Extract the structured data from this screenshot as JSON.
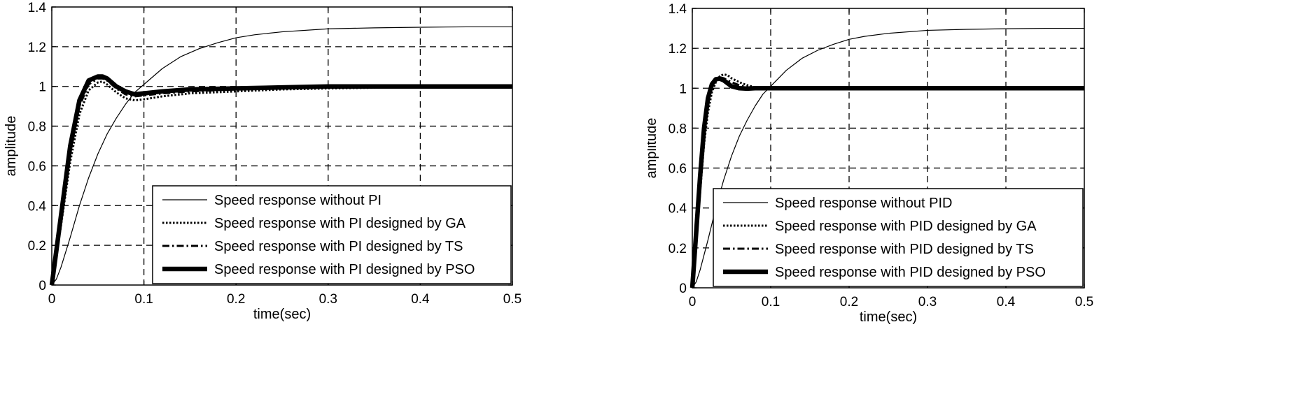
{
  "chart_data": [
    {
      "type": "line",
      "xlabel": "time(sec)",
      "ylabel": "amplitude",
      "xlim": [
        0,
        0.5
      ],
      "ylim": [
        0,
        1.4
      ],
      "xticks": [
        "0",
        "0.1",
        "0.2",
        "0.3",
        "0.4",
        "0.5"
      ],
      "yticks": [
        "0",
        "0.2",
        "0.4",
        "0.6",
        "0.8",
        "1",
        "1.2",
        "1.4"
      ],
      "grid": true,
      "legend_position": "bottom-right",
      "series": [
        {
          "name": "Speed response without PI",
          "style": "solid-thin",
          "x": [
            0,
            0.005,
            0.01,
            0.02,
            0.03,
            0.04,
            0.05,
            0.06,
            0.07,
            0.08,
            0.09,
            0.1,
            0.12,
            0.14,
            0.16,
            0.18,
            0.2,
            0.22,
            0.25,
            0.3,
            0.35,
            0.4,
            0.45,
            0.5
          ],
          "y": [
            0,
            0.03,
            0.09,
            0.24,
            0.4,
            0.54,
            0.66,
            0.76,
            0.84,
            0.91,
            0.97,
            1.01,
            1.09,
            1.15,
            1.19,
            1.22,
            1.245,
            1.26,
            1.275,
            1.29,
            1.295,
            1.298,
            1.3,
            1.3
          ]
        },
        {
          "name": "Speed response with PI designed by GA",
          "style": "dotted",
          "x": [
            0,
            0.01,
            0.02,
            0.03,
            0.04,
            0.05,
            0.055,
            0.06,
            0.07,
            0.08,
            0.09,
            0.1,
            0.12,
            0.15,
            0.2,
            0.25,
            0.3,
            0.4,
            0.5
          ],
          "y": [
            0,
            0.3,
            0.62,
            0.86,
            0.98,
            1.02,
            1.025,
            1.01,
            0.97,
            0.94,
            0.93,
            0.935,
            0.95,
            0.965,
            0.975,
            0.985,
            0.99,
            0.997,
            1.0
          ]
        },
        {
          "name": "Speed response with PI designed by TS",
          "style": "dashdot",
          "x": [
            0,
            0.01,
            0.02,
            0.03,
            0.04,
            0.05,
            0.055,
            0.06,
            0.07,
            0.08,
            0.09,
            0.1,
            0.12,
            0.15,
            0.2,
            0.25,
            0.3,
            0.4,
            0.5
          ],
          "y": [
            0,
            0.32,
            0.66,
            0.9,
            1.01,
            1.04,
            1.04,
            1.03,
            0.99,
            0.96,
            0.95,
            0.955,
            0.965,
            0.975,
            0.985,
            0.99,
            0.995,
            0.998,
            1.0
          ]
        },
        {
          "name": "Speed response with PI designed by PSO",
          "style": "solid-thick",
          "x": [
            0,
            0.01,
            0.02,
            0.03,
            0.04,
            0.05,
            0.055,
            0.06,
            0.07,
            0.08,
            0.09,
            0.1,
            0.12,
            0.15,
            0.2,
            0.25,
            0.3,
            0.4,
            0.5
          ],
          "y": [
            0,
            0.35,
            0.7,
            0.93,
            1.03,
            1.05,
            1.05,
            1.04,
            1.0,
            0.975,
            0.96,
            0.965,
            0.975,
            0.985,
            0.99,
            0.995,
            1.0,
            1.0,
            1.0
          ]
        }
      ]
    },
    {
      "type": "line",
      "xlabel": "time(sec)",
      "ylabel": "amplitude",
      "xlim": [
        0,
        0.5
      ],
      "ylim": [
        0,
        1.4
      ],
      "xticks": [
        "0",
        "0.1",
        "0.2",
        "0.3",
        "0.4",
        "0.5"
      ],
      "yticks": [
        "0",
        "0.2",
        "0.4",
        "0.6",
        "0.8",
        "1",
        "1.2",
        "1.4"
      ],
      "grid": true,
      "legend_position": "bottom-right",
      "series": [
        {
          "name": "Speed response without PID",
          "style": "solid-thin",
          "x": [
            0,
            0.005,
            0.01,
            0.02,
            0.03,
            0.04,
            0.05,
            0.06,
            0.07,
            0.08,
            0.09,
            0.1,
            0.12,
            0.14,
            0.16,
            0.18,
            0.2,
            0.22,
            0.25,
            0.3,
            0.35,
            0.4,
            0.45,
            0.5
          ],
          "y": [
            0,
            0.03,
            0.09,
            0.24,
            0.4,
            0.54,
            0.66,
            0.76,
            0.84,
            0.91,
            0.97,
            1.01,
            1.09,
            1.15,
            1.19,
            1.22,
            1.245,
            1.26,
            1.275,
            1.29,
            1.295,
            1.298,
            1.3,
            1.3
          ]
        },
        {
          "name": "Speed response with PID designed by GA",
          "style": "dotted",
          "x": [
            0,
            0.005,
            0.01,
            0.015,
            0.02,
            0.025,
            0.03,
            0.035,
            0.04,
            0.045,
            0.05,
            0.06,
            0.07,
            0.08,
            0.1,
            0.12,
            0.15,
            0.2,
            0.3,
            0.5
          ],
          "y": [
            0,
            0.22,
            0.48,
            0.72,
            0.88,
            0.98,
            1.03,
            1.06,
            1.07,
            1.065,
            1.05,
            1.03,
            1.015,
            1.005,
            1.0,
            1.0,
            1.0,
            1.0,
            1.0,
            1.0
          ]
        },
        {
          "name": "Speed response with PID designed by TS",
          "style": "dashdot",
          "x": [
            0,
            0.005,
            0.01,
            0.015,
            0.02,
            0.025,
            0.03,
            0.035,
            0.04,
            0.045,
            0.05,
            0.06,
            0.07,
            0.08,
            0.1,
            0.12,
            0.15,
            0.2,
            0.3,
            0.5
          ],
          "y": [
            0,
            0.25,
            0.52,
            0.76,
            0.92,
            1.01,
            1.045,
            1.055,
            1.05,
            1.04,
            1.03,
            1.015,
            1.005,
            1.0,
            1.0,
            1.0,
            1.0,
            1.0,
            1.0,
            1.0
          ]
        },
        {
          "name": "Speed response with PID designed by PSO",
          "style": "solid-thick",
          "x": [
            0,
            0.005,
            0.01,
            0.015,
            0.02,
            0.025,
            0.03,
            0.035,
            0.04,
            0.045,
            0.05,
            0.06,
            0.07,
            0.08,
            0.1,
            0.12,
            0.15,
            0.2,
            0.3,
            0.5
          ],
          "y": [
            0,
            0.28,
            0.56,
            0.8,
            0.95,
            1.02,
            1.045,
            1.048,
            1.04,
            1.025,
            1.01,
            1.0,
            0.998,
            1.0,
            1.0,
            1.0,
            1.0,
            1.0,
            1.0,
            1.0
          ]
        }
      ]
    }
  ]
}
